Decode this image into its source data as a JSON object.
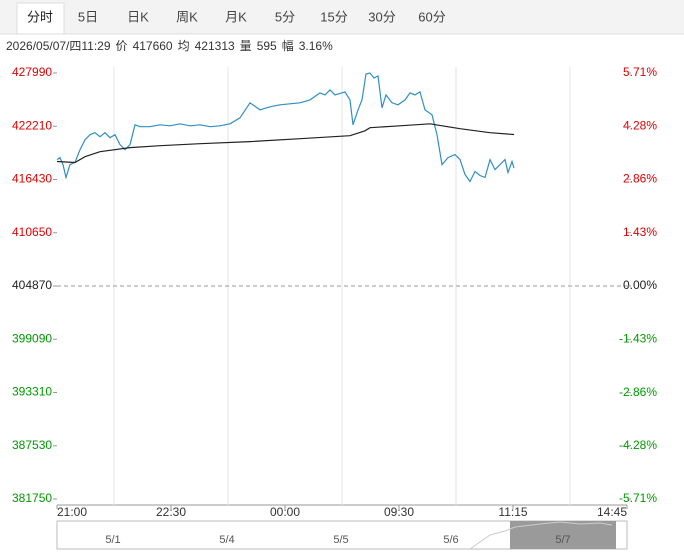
{
  "tabs": [
    "分时",
    "5日",
    "日K",
    "周K",
    "月K",
    "5分",
    "15分",
    "30分",
    "60分"
  ],
  "active_tab": 0,
  "info": {
    "date": "2026/05/07/四11:29",
    "price_label": "价",
    "price": 417660,
    "avg_label": "均",
    "avg": 421313,
    "vol_label": "量",
    "vol": 595,
    "amp_label": "幅",
    "amp": "3.16%"
  },
  "chart_data": {
    "type": "line",
    "series": [
      {
        "color": "#2f8fc4",
        "x": [
          0,
          3,
          6,
          9,
          13,
          18,
          23,
          28,
          33,
          38,
          43,
          48,
          53,
          58,
          63,
          68,
          73,
          78,
          83,
          93,
          103,
          113,
          123,
          133,
          143,
          153,
          163,
          173,
          183,
          193,
          203,
          213,
          223,
          233,
          243,
          253,
          263,
          268,
          273,
          278,
          288,
          293,
          296,
          301,
          305,
          309,
          313,
          317,
          321,
          325,
          329,
          335,
          341,
          348,
          353,
          358,
          363,
          368,
          375,
          380,
          385,
          391,
          398,
          403,
          408,
          413,
          418,
          423,
          428,
          433,
          438,
          443,
          448,
          451,
          455,
          457
        ],
        "values": [
          418590,
          418810,
          418050,
          416650,
          418050,
          418300,
          419670,
          420750,
          421290,
          421510,
          421080,
          421510,
          420970,
          421290,
          420210,
          419670,
          420210,
          422370,
          422160,
          422160,
          422370,
          422260,
          422480,
          422260,
          422370,
          422160,
          422260,
          422480,
          423130,
          424750,
          424000,
          424320,
          424540,
          424650,
          424750,
          425070,
          425830,
          425610,
          426150,
          425610,
          425940,
          425070,
          422370,
          423990,
          425070,
          427880,
          427990,
          427450,
          427670,
          424210,
          425610,
          424750,
          424540,
          425070,
          425830,
          425610,
          425940,
          423990,
          423450,
          421290,
          418050,
          418810,
          419130,
          418590,
          416970,
          416210,
          417300,
          416860,
          416650,
          418590,
          417510,
          418050,
          418590,
          417190,
          418380,
          417660
        ]
      },
      {
        "color": "#222222",
        "x": [
          0,
          18,
          28,
          43,
          73,
          103,
          143,
          193,
          243,
          293,
          308,
          313,
          343,
          373,
          403,
          433,
          457
        ],
        "values": [
          418380,
          418270,
          418910,
          419450,
          419890,
          420100,
          420320,
          420540,
          420860,
          421180,
          421720,
          422050,
          422260,
          422480,
          421940,
          421510,
          421313
        ]
      }
    ],
    "xlim": [
      0,
      570
    ],
    "xticks": [
      {
        "value": 0,
        "label": "21:00"
      },
      {
        "value": 114,
        "label": "22:30"
      },
      {
        "value": 228,
        "label": "00:00"
      },
      {
        "value": 342,
        "label": "09:30"
      },
      {
        "value": 456,
        "label": "11:15"
      },
      {
        "value": 570,
        "label": "14:45"
      }
    ],
    "ylim": [
      381750,
      427990
    ],
    "yticks": [
      427990,
      422210,
      416430,
      410650,
      404870,
      399090,
      393310,
      387530,
      381750
    ],
    "y2lim": [
      -5.71,
      5.71
    ],
    "y2ticks": [
      {
        "value": 5.71,
        "label": "5.71%"
      },
      {
        "value": 4.28,
        "label": "4.28%"
      },
      {
        "value": 2.86,
        "label": "2.86%"
      },
      {
        "value": 1.43,
        "label": "1.43%"
      },
      {
        "value": 0,
        "label": "0.00%"
      },
      {
        "value": -1.43,
        "label": "-1.43%"
      },
      {
        "value": -2.86,
        "label": "-2.86%"
      },
      {
        "value": -4.28,
        "label": "-4.28%"
      },
      {
        "value": -5.71,
        "label": "-5.71%"
      }
    ],
    "up_color": "#e00000",
    "down_color": "#009900",
    "flat_color": "#222222",
    "navigator_dates": [
      "5/1",
      "5/4",
      "5/5",
      "5/6",
      "5/7"
    ]
  }
}
